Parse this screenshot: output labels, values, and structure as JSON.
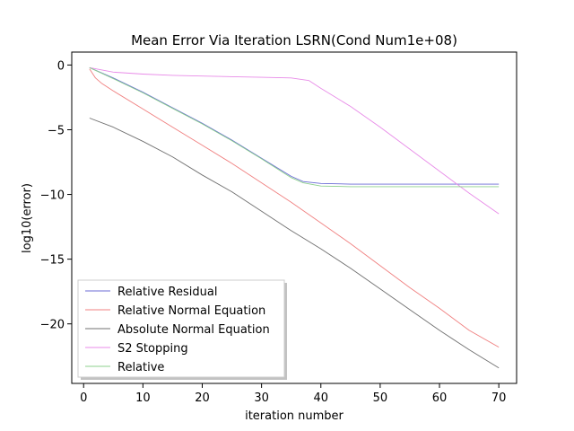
{
  "chart_data": {
    "type": "line",
    "title": "Mean Error Via Iteration LSRN(Cond Num1e+08)",
    "xlabel": "iteration number",
    "ylabel": "log10(error)",
    "xlim": [
      -2,
      73
    ],
    "ylim": [
      -24.6,
      1.0
    ],
    "xticks": [
      0,
      10,
      20,
      30,
      40,
      50,
      60,
      70
    ],
    "yticks": [
      0,
      -5,
      -10,
      -15,
      -20
    ],
    "grid": false,
    "legend_position": "lower-left",
    "series": [
      {
        "name": "Relative Residual",
        "color": "#6b6bd6",
        "x": [
          1,
          5,
          10,
          15,
          20,
          25,
          30,
          35,
          37,
          40,
          45,
          50,
          55,
          60,
          65,
          70
        ],
        "y": [
          -0.2,
          -1.0,
          -2.1,
          -3.3,
          -4.5,
          -5.8,
          -7.2,
          -8.6,
          -9.0,
          -9.15,
          -9.2,
          -9.2,
          -9.2,
          -9.2,
          -9.2,
          -9.2
        ]
      },
      {
        "name": "Relative Normal Equation",
        "color": "#f08080",
        "x": [
          1,
          2,
          3,
          5,
          10,
          15,
          20,
          25,
          30,
          35,
          40,
          45,
          50,
          55,
          60,
          65,
          70
        ],
        "y": [
          -0.3,
          -1.0,
          -1.4,
          -2.0,
          -3.4,
          -4.8,
          -6.2,
          -7.6,
          -9.1,
          -10.6,
          -12.2,
          -13.8,
          -15.5,
          -17.2,
          -18.8,
          -20.5,
          -21.8
        ]
      },
      {
        "name": "Absolute Normal Equation",
        "color": "#707070",
        "x": [
          1,
          5,
          10,
          15,
          20,
          25,
          30,
          35,
          40,
          45,
          50,
          55,
          60,
          65,
          70
        ],
        "y": [
          -4.1,
          -4.8,
          -5.9,
          -7.1,
          -8.5,
          -9.8,
          -11.3,
          -12.8,
          -14.2,
          -15.7,
          -17.3,
          -18.9,
          -20.5,
          -22.0,
          -23.4
        ]
      },
      {
        "name": "S2 Stopping",
        "color": "#e88be8",
        "x": [
          1,
          5,
          10,
          15,
          20,
          25,
          30,
          35,
          38,
          40,
          45,
          50,
          55,
          60,
          65,
          70
        ],
        "y": [
          -0.2,
          -0.55,
          -0.7,
          -0.8,
          -0.85,
          -0.9,
          -0.95,
          -1.0,
          -1.2,
          -1.8,
          -3.2,
          -4.8,
          -6.5,
          -8.2,
          -9.9,
          -11.5
        ]
      },
      {
        "name": "Relative",
        "color": "#8cd08c",
        "x": [
          1,
          5,
          10,
          15,
          20,
          25,
          30,
          35,
          37,
          40,
          45,
          50,
          55,
          60,
          65,
          70
        ],
        "y": [
          -0.2,
          -1.05,
          -2.15,
          -3.35,
          -4.55,
          -5.85,
          -7.25,
          -8.7,
          -9.1,
          -9.35,
          -9.4,
          -9.4,
          -9.4,
          -9.4,
          -9.4,
          -9.4
        ]
      }
    ]
  }
}
